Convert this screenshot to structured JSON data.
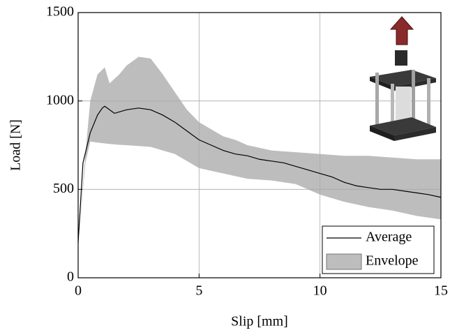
{
  "chart_data": {
    "type": "line",
    "x_label": "Slip [mm]",
    "y_label": "Load [N]",
    "xlim": [
      0,
      15
    ],
    "ylim": [
      0,
      1500
    ],
    "xticks": [
      0,
      5,
      10,
      15
    ],
    "yticks": [
      0,
      500,
      1000,
      1500
    ],
    "grid": true,
    "legend": "lower right",
    "series": [
      {
        "name": "Average",
        "color": "#000000",
        "x": [
          0,
          0.2,
          0.5,
          0.8,
          1,
          1.1,
          1.5,
          2,
          2.5,
          3,
          3.5,
          4,
          4.5,
          5,
          5.5,
          6,
          6.5,
          7,
          7.5,
          8,
          8.5,
          9,
          9.5,
          10,
          10.5,
          11,
          11.5,
          12,
          12.5,
          13,
          13.5,
          14,
          14.5,
          15
        ],
        "values": [
          200,
          650,
          820,
          920,
          960,
          970,
          930,
          950,
          960,
          950,
          920,
          880,
          830,
          780,
          750,
          720,
          700,
          690,
          670,
          660,
          650,
          630,
          610,
          590,
          570,
          540,
          520,
          510,
          500,
          500,
          490,
          480,
          470,
          455
        ]
      },
      {
        "name": "Envelope",
        "color": "#bdbdbd",
        "x": [
          0,
          0.3,
          0.5,
          0.8,
          1.1,
          1.3,
          1.7,
          2,
          2.5,
          3,
          3.5,
          4,
          4.5,
          5,
          5.5,
          6,
          6.5,
          7,
          8,
          9,
          10,
          11,
          12,
          13,
          14,
          15
        ],
        "upper": [
          200,
          700,
          1000,
          1150,
          1190,
          1100,
          1150,
          1200,
          1250,
          1240,
          1150,
          1050,
          950,
          880,
          840,
          800,
          780,
          750,
          720,
          710,
          700,
          690,
          690,
          680,
          670,
          670
        ],
        "lower": [
          200,
          650,
          770,
          765,
          760,
          757,
          752,
          750,
          745,
          740,
          720,
          700,
          660,
          620,
          605,
          590,
          575,
          560,
          550,
          530,
          470,
          430,
          400,
          380,
          350,
          330
        ]
      }
    ]
  }
}
